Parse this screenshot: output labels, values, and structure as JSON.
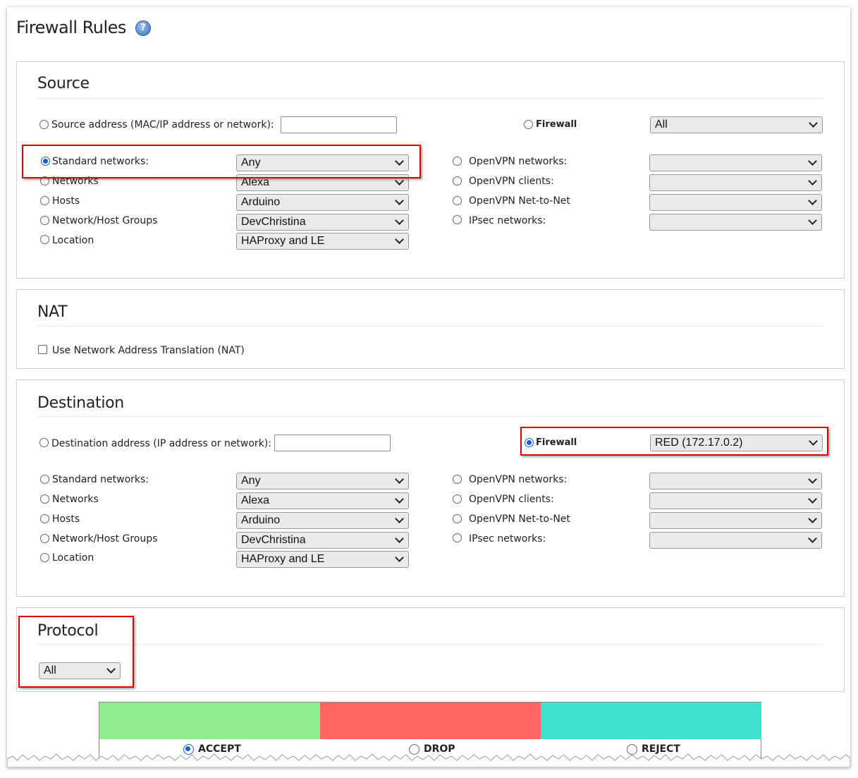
{
  "page": {
    "title": "Firewall Rules",
    "help_icon": "question-icon",
    "help_glyph": "?"
  },
  "source": {
    "heading": "Source",
    "address_label": "Source address (MAC/IP address or network):",
    "address_value": "",
    "firewall_label": "Firewall",
    "firewall_value": "All",
    "left_rows": [
      {
        "label": "Standard networks:",
        "value": "Any",
        "selected": true
      },
      {
        "label": "Networks",
        "value": "Alexa"
      },
      {
        "label": "Hosts",
        "value": "Arduino"
      },
      {
        "label": "Network/Host Groups",
        "value": "DevChristina"
      },
      {
        "label": "Location",
        "value": "HAProxy and LE"
      }
    ],
    "right_rows": [
      {
        "label": "OpenVPN networks:",
        "value": ""
      },
      {
        "label": "OpenVPN clients:",
        "value": ""
      },
      {
        "label": "OpenVPN Net-to-Net",
        "value": ""
      },
      {
        "label": "IPsec networks:",
        "value": ""
      }
    ]
  },
  "nat": {
    "heading": "NAT",
    "checkbox_label": "Use Network Address Translation (NAT)"
  },
  "destination": {
    "heading": "Destination",
    "address_label": "Destination address (IP address or network):",
    "address_value": "",
    "firewall_label": "Firewall",
    "firewall_value": "RED (172.17.0.2)",
    "left_rows": [
      {
        "label": "Standard networks:",
        "value": "Any"
      },
      {
        "label": "Networks",
        "value": "Alexa"
      },
      {
        "label": "Hosts",
        "value": "Arduino"
      },
      {
        "label": "Network/Host Groups",
        "value": "DevChristina"
      },
      {
        "label": "Location",
        "value": "HAProxy and LE"
      }
    ],
    "right_rows": [
      {
        "label": "OpenVPN networks:",
        "value": ""
      },
      {
        "label": "OpenVPN clients:",
        "value": ""
      },
      {
        "label": "OpenVPN Net-to-Net",
        "value": ""
      },
      {
        "label": "IPsec networks:",
        "value": ""
      }
    ]
  },
  "protocol": {
    "heading": "Protocol",
    "value": "All"
  },
  "actions": [
    {
      "label": "ACCEPT",
      "color": "#90ee90",
      "selected": true
    },
    {
      "label": "DROP",
      "color": "#ff6666"
    },
    {
      "label": "REJECT",
      "color": "#40e0d0"
    }
  ],
  "colors": {
    "highlight": "#e00000",
    "radio_selected": "#1a5fd0"
  }
}
